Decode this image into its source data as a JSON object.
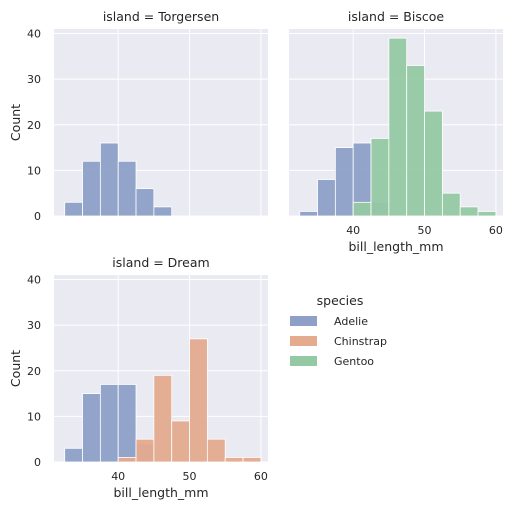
{
  "chart_data": {
    "type": "bar",
    "description_x": "histogram bins on bill_length_mm; each bin is [start, end] with a count",
    "x_label": "bill_length_mm",
    "y_label": "Count",
    "xlim": [
      31,
      61
    ],
    "ylim": [
      0,
      41
    ],
    "x_ticks": [
      40,
      50,
      60
    ],
    "y_ticks": [
      0,
      10,
      20,
      30,
      40
    ],
    "grid": true,
    "legend": {
      "title": "species",
      "placement": "right-middle",
      "entries": [
        {
          "name": "Adelie",
          "color": "#8ea0c8"
        },
        {
          "name": "Chinstrap",
          "color": "#e4ab8e"
        },
        {
          "name": "Gentoo",
          "color": "#95c9a3"
        }
      ]
    },
    "panels": [
      {
        "title": "island = Torgersen",
        "show_xlabel": false,
        "show_ylabel": true,
        "show_xticks": false,
        "show_yticks": true,
        "series": [
          {
            "name": "Adelie",
            "bins": [
              [
                32.5,
                35
              ],
              [
                35,
                37.5
              ],
              [
                37.5,
                40
              ],
              [
                40,
                42.5
              ],
              [
                42.5,
                45
              ],
              [
                45,
                47.5
              ]
            ],
            "counts": [
              3,
              12,
              16,
              12,
              6,
              2
            ]
          }
        ]
      },
      {
        "title": "island = Biscoe",
        "show_xlabel": true,
        "show_ylabel": false,
        "show_xticks": true,
        "show_yticks": false,
        "series": [
          {
            "name": "Adelie",
            "bins": [
              [
                32.5,
                35
              ],
              [
                35,
                37.5
              ],
              [
                37.5,
                40
              ],
              [
                40,
                42.5
              ],
              [
                42.5,
                45
              ]
            ],
            "counts": [
              1,
              8,
              15,
              16,
              3
            ]
          },
          {
            "name": "Gentoo",
            "bins": [
              [
                40,
                42.5
              ],
              [
                42.5,
                45
              ],
              [
                45,
                47.5
              ],
              [
                47.5,
                50
              ],
              [
                50,
                52.5
              ],
              [
                52.5,
                55
              ],
              [
                55,
                57.5
              ],
              [
                57.5,
                60
              ]
            ],
            "counts": [
              3,
              17,
              39,
              33,
              23,
              5,
              2,
              1
            ]
          }
        ]
      },
      {
        "title": "island = Dream",
        "show_xlabel": true,
        "show_ylabel": true,
        "show_xticks": true,
        "show_yticks": true,
        "series": [
          {
            "name": "Adelie",
            "bins": [
              [
                32.5,
                35
              ],
              [
                35,
                37.5
              ],
              [
                37.5,
                40
              ],
              [
                40,
                42.5
              ],
              [
                42.5,
                45
              ]
            ],
            "counts": [
              3,
              15,
              17,
              17,
              4
            ]
          },
          {
            "name": "Chinstrap",
            "bins": [
              [
                40,
                42.5
              ],
              [
                42.5,
                45
              ],
              [
                45,
                47.5
              ],
              [
                47.5,
                50
              ],
              [
                50,
                52.5
              ],
              [
                52.5,
                55
              ],
              [
                55,
                57.5
              ],
              [
                57.5,
                60
              ]
            ],
            "counts": [
              1,
              5,
              19,
              9,
              27,
              5,
              1,
              1
            ]
          }
        ]
      }
    ]
  }
}
